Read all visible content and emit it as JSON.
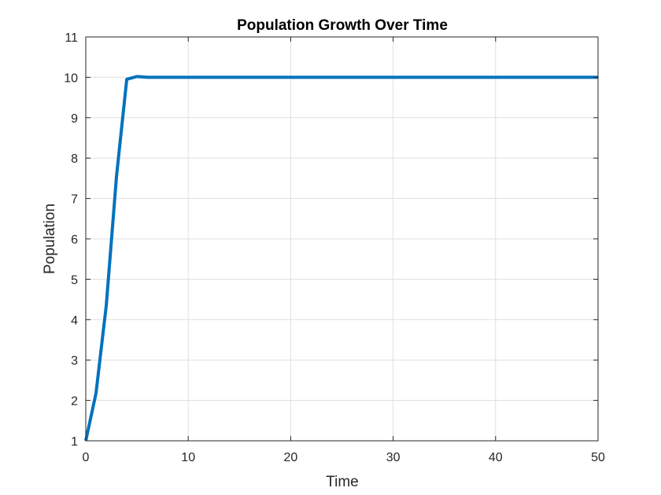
{
  "chart_data": {
    "type": "line",
    "title": "Population Growth Over Time",
    "xlabel": "Time",
    "ylabel": "Population",
    "xlim": [
      0,
      50
    ],
    "ylim": [
      1,
      11
    ],
    "x_ticks": [
      0,
      10,
      20,
      30,
      40,
      50
    ],
    "y_ticks": [
      1,
      2,
      3,
      4,
      5,
      6,
      7,
      8,
      9,
      10,
      11
    ],
    "grid": true,
    "line_color": "#0072BD",
    "series": [
      {
        "x": [
          0,
          1,
          2,
          3,
          4,
          5,
          6,
          7,
          8,
          9,
          10,
          11,
          12,
          13,
          14,
          15,
          16,
          17,
          18,
          19,
          20,
          21,
          22,
          23,
          24,
          25,
          26,
          27,
          28,
          29,
          30,
          31,
          32,
          33,
          34,
          35,
          36,
          37,
          38,
          39,
          40,
          41,
          42,
          43,
          44,
          45,
          46,
          47,
          48,
          49,
          50
        ],
        "values": [
          1,
          2.18,
          4.35,
          7.55,
          9.95,
          10.02,
          10,
          10,
          10,
          10,
          10,
          10,
          10,
          10,
          10,
          10,
          10,
          10,
          10,
          10,
          10,
          10,
          10,
          10,
          10,
          10,
          10,
          10,
          10,
          10,
          10,
          10,
          10,
          10,
          10,
          10,
          10,
          10,
          10,
          10,
          10,
          10,
          10,
          10,
          10,
          10,
          10,
          10,
          10,
          10,
          10
        ]
      }
    ]
  }
}
